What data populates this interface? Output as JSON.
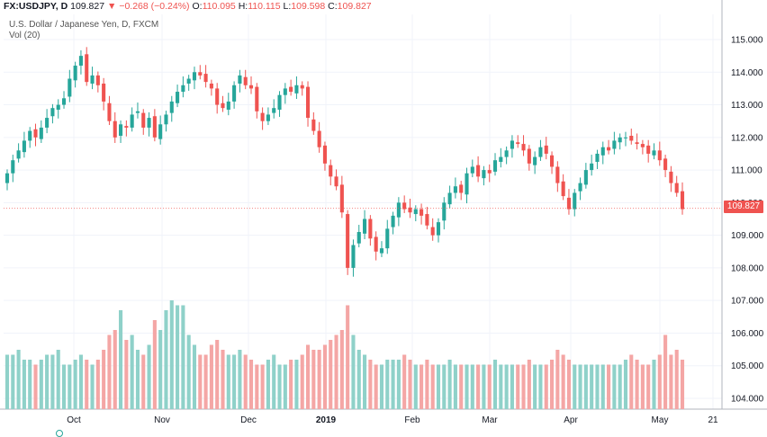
{
  "header": {
    "symbol": "FX:USDJPY, D",
    "last": "109.827",
    "change_arrow": "▼",
    "change": "−0.268 (−0.24%)",
    "open_label": "O:",
    "open": "110.095",
    "high_label": "H:",
    "high": "110.115",
    "low_label": "L:",
    "low": "109.598",
    "close_label": "C:",
    "close": "109.827"
  },
  "subtitle": "U.S. Dollar / Japanese Yen, D, FXCM",
  "volume_label": "Vol (20)",
  "price_tag": "109.827",
  "colors": {
    "up": "#26a69a",
    "down": "#ef5350",
    "vol_up": "#8fd1c9",
    "vol_down": "#f4a6a5",
    "grid": "#f0f3fa",
    "axis": "#b2b5be"
  },
  "chart_data": {
    "type": "candlestick",
    "title": "U.S. Dollar / Japanese Yen, D, FXCM",
    "y_ticks": [
      "115.000",
      "114.000",
      "113.000",
      "112.000",
      "111.000",
      "110.000",
      "109.000",
      "108.000",
      "107.000",
      "106.000",
      "105.000",
      "104.000"
    ],
    "x_ticks": [
      "Oct",
      "Nov",
      "Dec",
      "2019",
      "Feb",
      "Mar",
      "Apr",
      "May",
      "21"
    ],
    "ylim": [
      103.8,
      115.5
    ],
    "last_price": 109.827,
    "grid": true,
    "closes": [
      110.9,
      111.3,
      111.6,
      111.9,
      112.2,
      112.0,
      112.3,
      112.6,
      112.9,
      113.0,
      113.2,
      113.8,
      114.2,
      114.5,
      113.7,
      113.9,
      113.6,
      113.1,
      112.5,
      112.0,
      112.4,
      112.3,
      112.7,
      112.8,
      112.3,
      112.6,
      112.0,
      112.4,
      112.7,
      113.1,
      113.4,
      113.6,
      113.8,
      114.0,
      113.9,
      113.7,
      113.5,
      113.0,
      112.9,
      113.1,
      113.6,
      113.9,
      113.6,
      113.5,
      112.8,
      112.5,
      112.7,
      112.9,
      113.3,
      113.5,
      113.4,
      113.6,
      113.5,
      112.6,
      112.2,
      111.7,
      111.2,
      110.8,
      110.5,
      109.7,
      108.0,
      108.7,
      109.1,
      109.5,
      108.9,
      108.5,
      108.6,
      109.2,
      109.6,
      110.0,
      109.8,
      109.7,
      109.8,
      109.6,
      109.3,
      109.0,
      109.4,
      110.0,
      110.3,
      110.5,
      110.3,
      110.9,
      111.1,
      110.8,
      111.0,
      110.9,
      111.3,
      111.4,
      111.6,
      111.9,
      111.8,
      111.6,
      111.2,
      111.4,
      111.7,
      111.5,
      111.1,
      110.6,
      110.2,
      109.8,
      110.3,
      110.6,
      111.0,
      111.2,
      111.5,
      111.7,
      111.6,
      111.9,
      112.0,
      112.0,
      111.9,
      111.8,
      111.7,
      111.5,
      111.6,
      111.3,
      111.0,
      110.6,
      110.3,
      109.8
    ],
    "volumes": [
      0.55,
      0.55,
      0.6,
      0.5,
      0.5,
      0.45,
      0.5,
      0.55,
      0.55,
      0.6,
      0.45,
      0.45,
      0.5,
      0.55,
      0.5,
      0.45,
      0.5,
      0.6,
      0.75,
      0.8,
      1.0,
      0.7,
      0.75,
      0.6,
      0.55,
      0.65,
      0.9,
      0.8,
      1.0,
      1.1,
      1.05,
      1.05,
      0.75,
      0.65,
      0.55,
      0.55,
      0.65,
      0.7,
      0.6,
      0.55,
      0.55,
      0.6,
      0.55,
      0.5,
      0.45,
      0.45,
      0.5,
      0.55,
      0.45,
      0.45,
      0.5,
      0.5,
      0.55,
      0.65,
      0.6,
      0.6,
      0.65,
      0.7,
      0.75,
      0.8,
      1.05,
      0.75,
      0.6,
      0.55,
      0.5,
      0.45,
      0.45,
      0.5,
      0.5,
      0.5,
      0.55,
      0.5,
      0.45,
      0.45,
      0.5,
      0.45,
      0.45,
      0.45,
      0.5,
      0.45,
      0.45,
      0.45,
      0.45,
      0.45,
      0.45,
      0.45,
      0.5,
      0.45,
      0.45,
      0.45,
      0.45,
      0.45,
      0.5,
      0.45,
      0.45,
      0.45,
      0.5,
      0.6,
      0.55,
      0.5,
      0.45,
      0.45,
      0.45,
      0.45,
      0.45,
      0.45,
      0.45,
      0.45,
      0.45,
      0.5,
      0.55,
      0.5,
      0.45,
      0.45,
      0.5,
      0.55,
      0.75,
      0.55,
      0.6,
      0.5
    ]
  }
}
